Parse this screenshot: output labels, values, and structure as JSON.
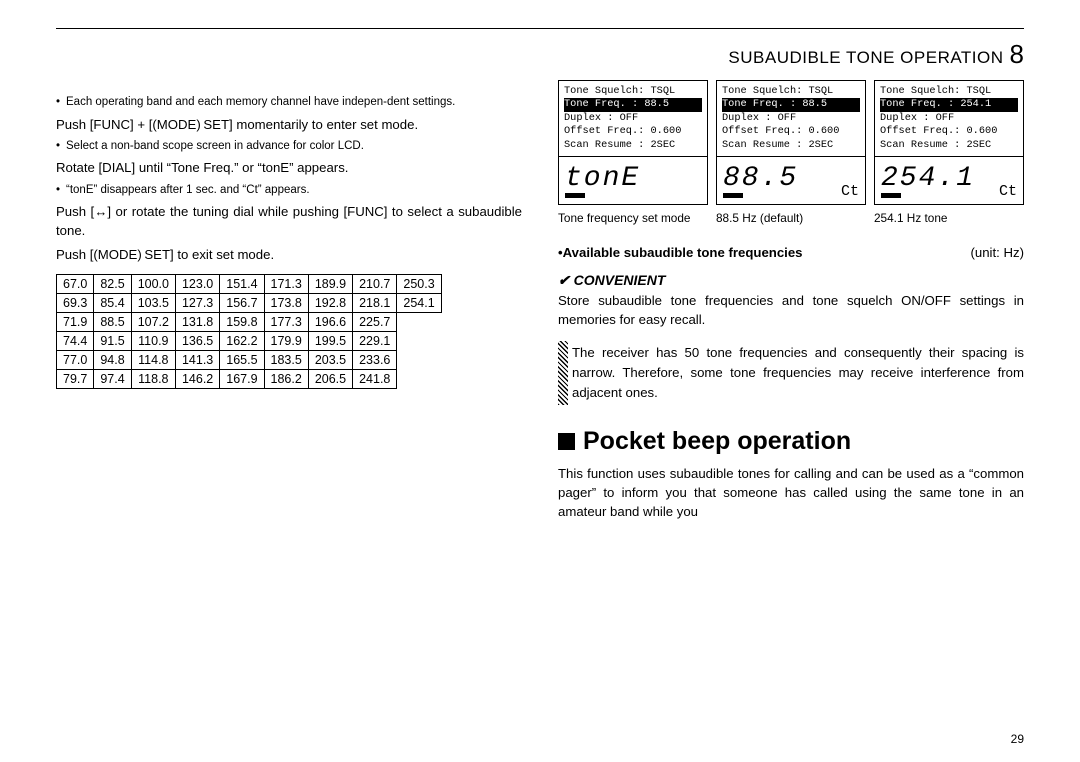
{
  "header": {
    "title": "SUBAUDIBLE TONE OPERATION",
    "chapter": "8"
  },
  "page_number": "29",
  "left": {
    "b1": "Each operating band and each memory channel have indepen-dent settings.",
    "p1": "Push [FUNC] + [(MODE) SET] momentarily to enter set mode.",
    "b2": "Select a non-band scope screen in advance for color LCD.",
    "p2": "Rotate [DIAL] until “Tone Freq.” or “tonE” appears.",
    "b3": "“tonE” disappears after 1 sec. and “Ct” appears.",
    "p3": "Push [↔] or rotate the tuning dial while pushing [FUNC] to select a subaudible tone.",
    "p4": "Push [(MODE) SET] to exit set mode."
  },
  "freq_table": [
    [
      "67.0",
      "82.5",
      "100.0",
      "123.0",
      "151.4",
      "171.3",
      "189.9",
      "210.7",
      "250.3"
    ],
    [
      "69.3",
      "85.4",
      "103.5",
      "127.3",
      "156.7",
      "173.8",
      "192.8",
      "218.1",
      "254.1"
    ],
    [
      "71.9",
      "88.5",
      "107.2",
      "131.8",
      "159.8",
      "177.3",
      "196.6",
      "225.7",
      ""
    ],
    [
      "74.4",
      "91.5",
      "110.9",
      "136.5",
      "162.2",
      "179.9",
      "199.5",
      "229.1",
      ""
    ],
    [
      "77.0",
      "94.8",
      "114.8",
      "141.3",
      "165.5",
      "183.5",
      "203.5",
      "233.6",
      ""
    ],
    [
      "79.7",
      "97.4",
      "118.8",
      "146.2",
      "167.9",
      "186.2",
      "206.5",
      "241.8",
      ""
    ]
  ],
  "lcd": {
    "common": {
      "r1": "Tone Squelch:  TSQL",
      "r3": "Duplex      :  OFF",
      "r4": "Offset Freq.:  0.600",
      "r5": "Scan Resume :  2SEC"
    },
    "a": {
      "r2": "Tone Freq.  :  88.5",
      "big": "tonE",
      "ct": "",
      "cap": "Tone frequency set mode"
    },
    "b": {
      "r2": "Tone Freq.  :  88.5",
      "big": "88.5",
      "ct": "Ct",
      "cap": "88.5 Hz (default)"
    },
    "c": {
      "r2": "Tone Freq.  : 254.1",
      "big": "254.1",
      "ct": "Ct",
      "cap": "254.1 Hz tone"
    }
  },
  "right": {
    "avail_label": "•Available subaudible tone frequencies",
    "avail_unit": "(unit: Hz)",
    "conv_icon": "✔",
    "conv_title": "CONVENIENT",
    "conv_text": "Store subaudible tone frequencies and tone squelch ON/OFF settings in memories for easy recall.",
    "hatched": "The receiver has 50 tone frequencies and consequently their spacing is narrow. Therefore, some tone frequencies may receive interference from adjacent ones.",
    "pocket_heading": "Pocket beep operation",
    "pocket_text": "This function uses subaudible tones for calling and can be used as a “common pager” to inform you that someone has called using the same tone in an amateur band while you"
  }
}
